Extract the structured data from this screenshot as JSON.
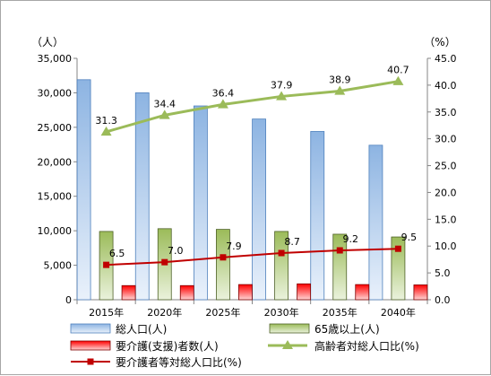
{
  "chart_data": {
    "type": "bar",
    "categories": [
      "2015年",
      "2020年",
      "2025年",
      "2030年",
      "2035年",
      "2040年"
    ],
    "left_axis": {
      "unit": "（人）",
      "ylim": [
        0,
        35000
      ],
      "ticks": [
        "0",
        "5,000",
        "10,000",
        "15,000",
        "20,000",
        "25,000",
        "30,000",
        "35,000"
      ]
    },
    "right_axis": {
      "unit": "（%）",
      "ylim": [
        0,
        45
      ],
      "ticks": [
        "0.0",
        "5.0",
        "10.0",
        "15.0",
        "20.0",
        "25.0",
        "30.0",
        "35.0",
        "40.0",
        "45.0"
      ]
    },
    "bar_series": [
      {
        "name": "総人口(人)",
        "color": "#8db4e2",
        "values": [
          31900,
          30000,
          28100,
          26200,
          24400,
          22400
        ]
      },
      {
        "name": "65歳以上(人)",
        "color": "#9bbb59",
        "values": [
          9900,
          10300,
          10200,
          9900,
          9500,
          9100
        ]
      },
      {
        "name": "要介護(支援)者数(人)",
        "color": "#ff0000",
        "values": [
          2050,
          2050,
          2200,
          2300,
          2200,
          2150
        ]
      }
    ],
    "line_series": [
      {
        "name": "高齢者対総人口比(%)",
        "color": "#9bbb59",
        "marker": "triangle",
        "values": [
          31.3,
          34.4,
          36.4,
          37.9,
          38.9,
          40.7
        ],
        "labels": [
          "31.3",
          "34.4",
          "36.4",
          "37.9",
          "38.9",
          "40.7"
        ]
      },
      {
        "name": "要介護者等対総人口比(%)",
        "color": "#c00000",
        "marker": "square",
        "values": [
          6.5,
          7.0,
          7.9,
          8.7,
          9.2,
          9.5
        ],
        "labels": [
          "6.5",
          "7.0",
          "7.9",
          "8.7",
          "9.2",
          "9.5"
        ]
      }
    ],
    "grid": false,
    "legend_position": "bottom"
  }
}
